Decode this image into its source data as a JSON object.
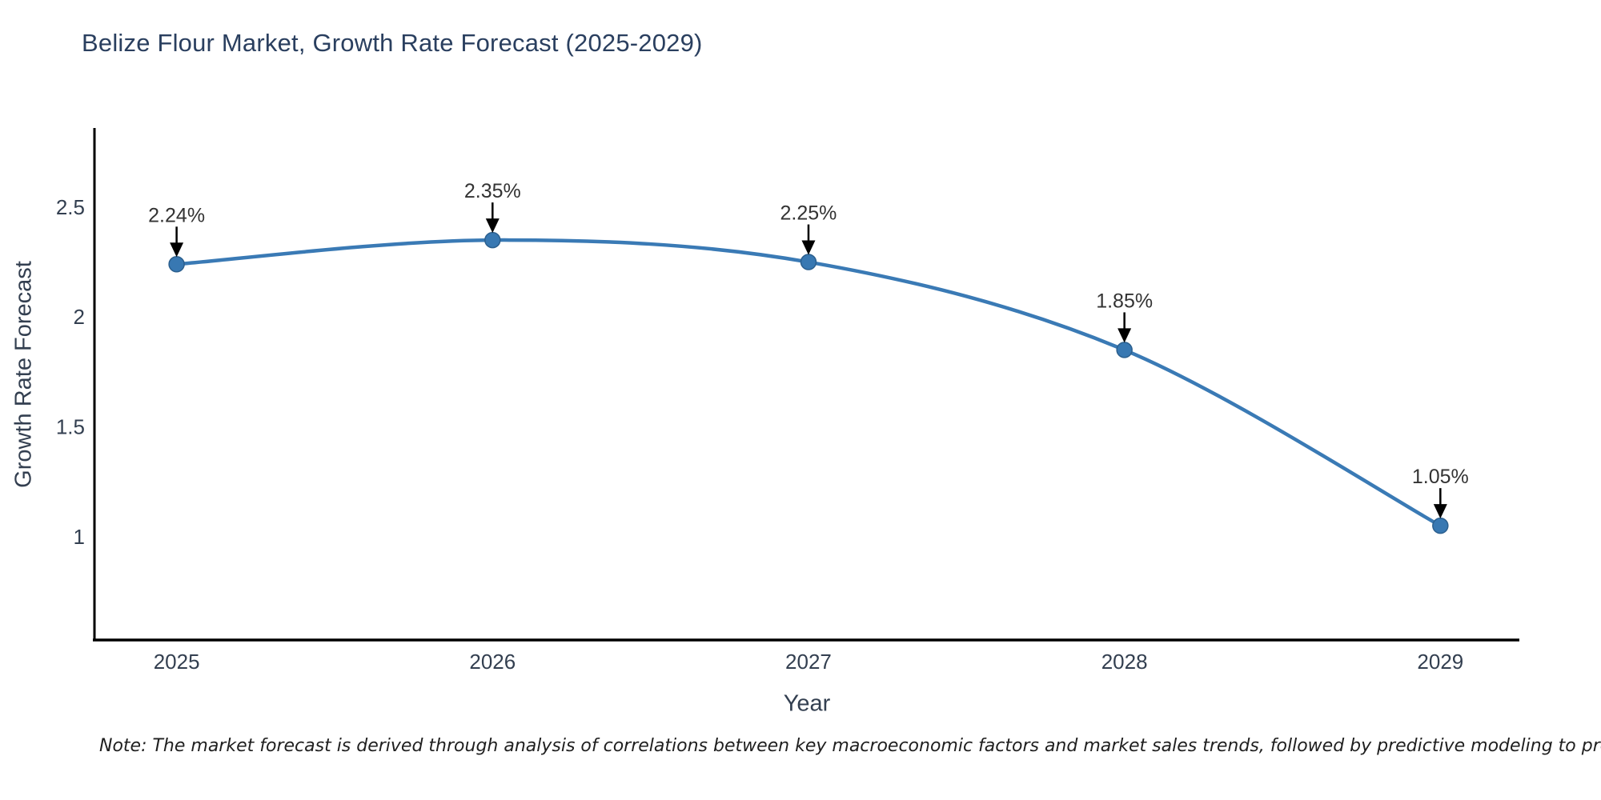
{
  "page": {
    "background": "#ffffff"
  },
  "chart_data": {
    "type": "line",
    "title": "Belize Flour Market, Growth Rate Forecast (2025-2029)",
    "xlabel": "Year",
    "ylabel": "Growth Rate Forecast",
    "x": [
      2025,
      2026,
      2027,
      2028,
      2029
    ],
    "series": [
      {
        "name": "Growth Rate Forecast",
        "values": [
          2.24,
          2.35,
          2.25,
          1.85,
          1.05
        ]
      }
    ],
    "point_labels": [
      "2.24%",
      "2.35%",
      "2.25%",
      "1.85%",
      "1.05%"
    ],
    "xtick_labels": [
      "2025",
      "2026",
      "2027",
      "2028",
      "2029"
    ],
    "yticks": [
      1,
      1.5,
      2,
      2.5
    ],
    "ytick_labels": [
      "1",
      "1.5",
      "2",
      "2.5"
    ],
    "xlim": [
      2024.74,
      2029.25
    ],
    "ylim": [
      0.53,
      2.86
    ],
    "grid": false,
    "legend": false,
    "line_shape": "spline",
    "colors": {
      "line": "#3a7ab5",
      "marker_fill": "#3878b2",
      "marker_edge": "#2b5f8e",
      "axis": "#000000",
      "arrow": "#000000",
      "title_text": "#2a3f5f",
      "tick_text": "#333f50",
      "axis_title_text": "#333f50",
      "annotation_text": "#333333",
      "note_text": "#1f1f1f"
    }
  },
  "note": {
    "text": "Note: The market forecast is derived through analysis of correlations between key macroeconomic factors and market sales trends, followed by predictive modeling to project future sales"
  }
}
